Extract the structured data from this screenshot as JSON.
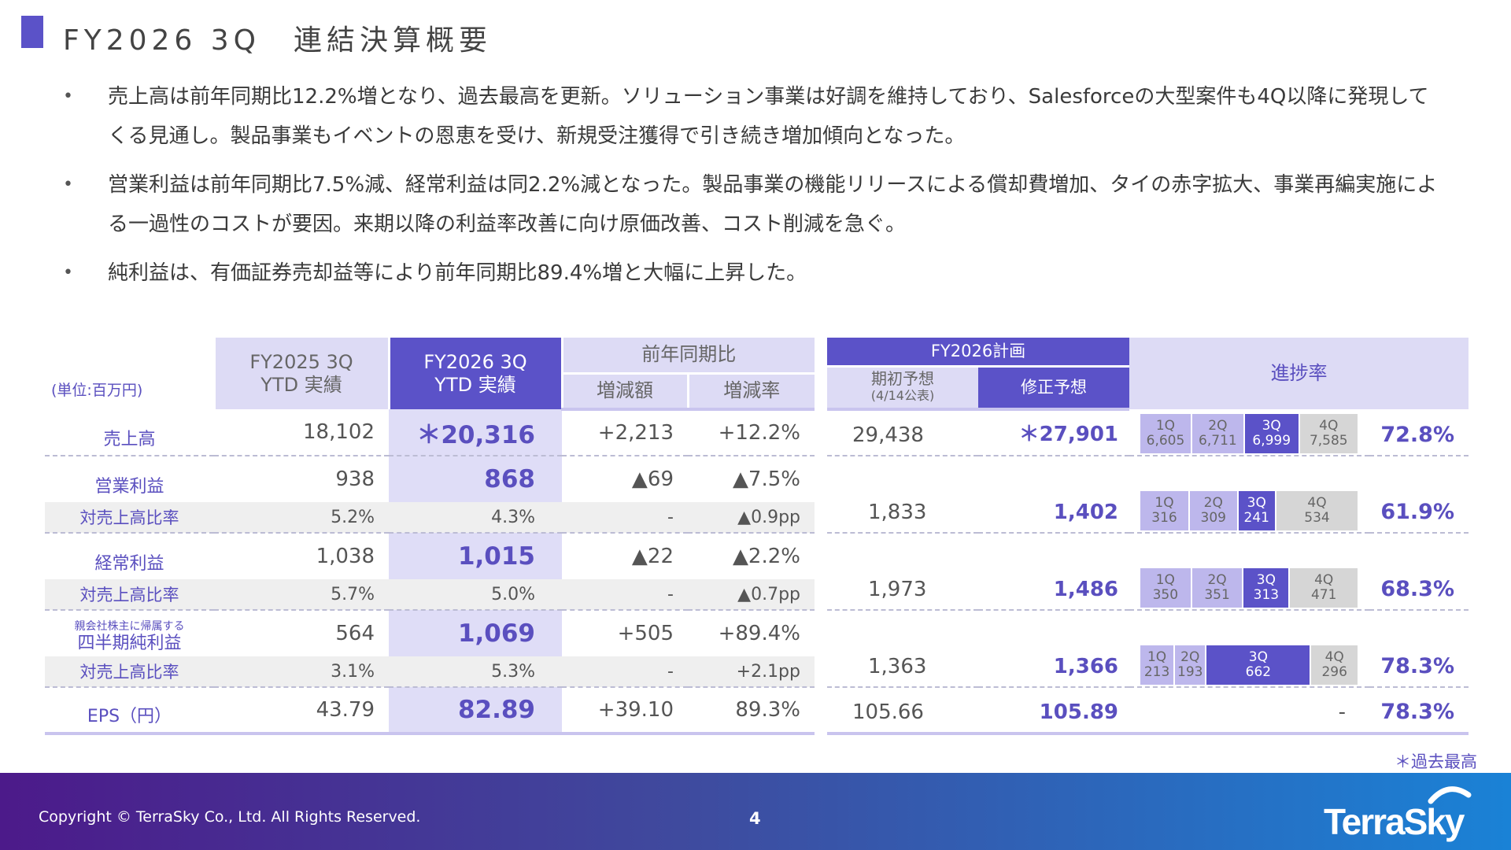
{
  "title": "FY2026 3Q　連結決算概要",
  "bullets": [
    "売上高は前年同期比12.2%増となり、過去最高を更新。ソリューション事業は好調を維持しており、Salesforceの大型案件も4Q以降に発現してくる見通し。製品事業もイベントの恩恵を受け、新規受注獲得で引き続き増加傾向となった。",
    "営業利益は前年同期比7.5%減、経常利益は同2.2%減となった。製品事業の機能リリースによる償却費増加、タイの赤字拡大、事業再編実施による一過性のコストが要因。来期以降の利益率改善に向け原価改善、コスト削減を急ぐ。",
    "純利益は、有価証券売却益等により前年同期比89.4%増と大幅に上昇した。"
  ],
  "left_table": {
    "unit": "(単位:百万円)",
    "col_fy2025": [
      "FY2025 3Q",
      "YTD 実績"
    ],
    "col_fy2026": [
      "FY2026 3Q",
      "YTD 実績"
    ],
    "col_yoy": "前年同期比",
    "col_diff": "増減額",
    "col_rate": "増減率",
    "rows": [
      {
        "label": "売上高",
        "fy2025": "18,102",
        "fy2026": "＊20,316",
        "diff": "+2,213",
        "rate": "+12.2%"
      },
      {
        "label": "営業利益",
        "fy2025": "938",
        "fy2026": "868",
        "diff": "▲69",
        "rate": "▲7.5%"
      },
      {
        "label": "対売上高比率",
        "fy2025": "5.2%",
        "fy2026": "4.3%",
        "diff": "-",
        "rate": "▲0.9pp"
      },
      {
        "label": "経常利益",
        "fy2025": "1,038",
        "fy2026": "1,015",
        "diff": "▲22",
        "rate": "▲2.2%"
      },
      {
        "label": "対売上高比率",
        "fy2025": "5.7%",
        "fy2026": "5.0%",
        "diff": "-",
        "rate": "▲0.7pp"
      },
      {
        "label_small": "親会社株主に帰属する",
        "label": "四半期純利益",
        "fy2025": "564",
        "fy2026": "1,069",
        "diff": "+505",
        "rate": "+89.4%"
      },
      {
        "label": "対売上高比率",
        "fy2025": "3.1%",
        "fy2026": "5.3%",
        "diff": "-",
        "rate": "+2.1pp"
      },
      {
        "label": "EPS（円）",
        "fy2025": "43.79",
        "fy2026": "82.89",
        "diff": "+39.10",
        "rate": "89.3%"
      }
    ]
  },
  "right_table": {
    "plan_header": "FY2026計画",
    "initial_header": "期初予想",
    "initial_sub": "(4/14公表)",
    "revised_header": "修正予想",
    "progress_header": "進捗率",
    "rows": [
      {
        "initial": "29,438",
        "revised": "＊27,901",
        "quarters": [
          {
            "q": "1Q",
            "v": "6,605",
            "n": 6605
          },
          {
            "q": "2Q",
            "v": "6,711",
            "n": 6711
          },
          {
            "q": "3Q",
            "v": "6,999",
            "n": 6999
          },
          {
            "q": "4Q",
            "v": "7,585",
            "n": 7585
          }
        ],
        "progress": "72.8%"
      },
      {
        "initial": "1,833",
        "revised": "1,402",
        "quarters": [
          {
            "q": "1Q",
            "v": "316",
            "n": 316
          },
          {
            "q": "2Q",
            "v": "309",
            "n": 309
          },
          {
            "q": "3Q",
            "v": "241",
            "n": 241
          },
          {
            "q": "4Q",
            "v": "534",
            "n": 534
          }
        ],
        "progress": "61.9%"
      },
      {
        "initial": "1,973",
        "revised": "1,486",
        "quarters": [
          {
            "q": "1Q",
            "v": "350",
            "n": 350
          },
          {
            "q": "2Q",
            "v": "351",
            "n": 351
          },
          {
            "q": "3Q",
            "v": "313",
            "n": 313
          },
          {
            "q": "4Q",
            "v": "471",
            "n": 471
          }
        ],
        "progress": "68.3%"
      },
      {
        "initial": "1,363",
        "revised": "1,366",
        "quarters": [
          {
            "q": "1Q",
            "v": "213",
            "n": 213
          },
          {
            "q": "2Q",
            "v": "193",
            "n": 193
          },
          {
            "q": "3Q",
            "v": "662",
            "n": 662
          },
          {
            "q": "4Q",
            "v": "296",
            "n": 296
          }
        ],
        "progress": "78.3%"
      },
      {
        "initial": "105.66",
        "revised": "105.89",
        "dash": "-",
        "progress": "78.3%"
      }
    ]
  },
  "note": "＊過去最高",
  "footer": {
    "copyright": "Copyright © TerraSky Co., Ltd. All Rights Reserved.",
    "page": "4",
    "logo": "TerraSky"
  },
  "colors": {
    "accent": "#5b52c8",
    "light": "#dddbf5",
    "label": "#5a4fbf",
    "q4": "#d6d6d6"
  }
}
